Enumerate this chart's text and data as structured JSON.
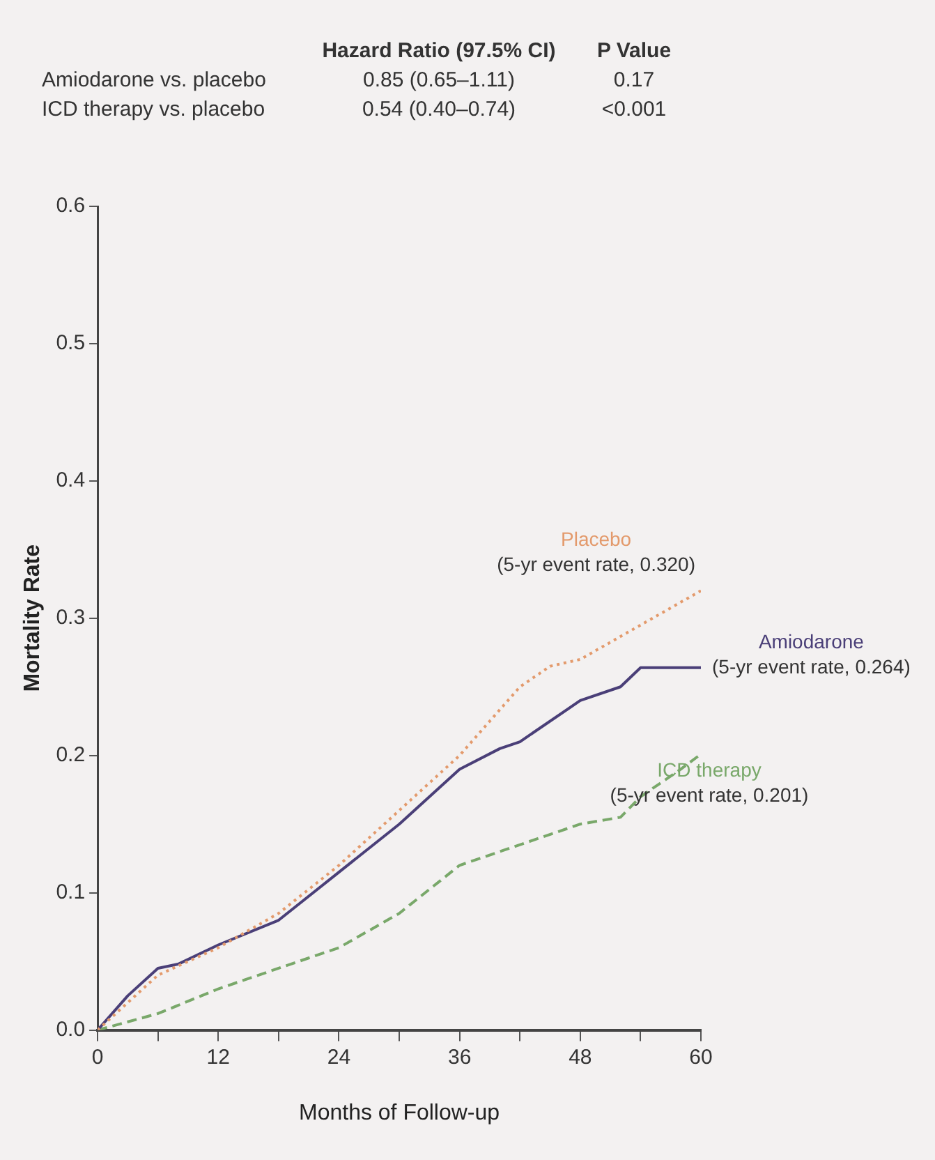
{
  "chart_data": {
    "type": "line",
    "xlabel": "Months of Follow-up",
    "ylabel": "Mortality Rate",
    "xlim": [
      0,
      60
    ],
    "xticks": [
      0,
      {
        "value": 6,
        "label": null
      },
      12,
      {
        "value": 18,
        "label": null
      },
      24,
      {
        "value": 30,
        "label": null
      },
      36,
      {
        "value": 42,
        "label": null
      },
      48,
      {
        "value": 54,
        "label": null
      },
      60
    ],
    "ylim": [
      0,
      0.6
    ],
    "yticks": [
      {
        "value": 0,
        "label": "0.0"
      },
      0.1,
      0.2,
      0.3,
      0.4,
      0.5,
      0.6
    ],
    "grid": false,
    "legend": false,
    "marker": "none",
    "series": [
      {
        "name": "Placebo",
        "color": "#e39a6c",
        "line_style": "dotted",
        "x": [
          0,
          3,
          6,
          9,
          12,
          18,
          24,
          30,
          36,
          42,
          45,
          48,
          54,
          60
        ],
        "values": [
          0,
          0.02,
          0.04,
          0.05,
          0.06,
          0.085,
          0.12,
          0.16,
          0.2,
          0.25,
          0.265,
          0.27,
          0.295,
          0.32
        ]
      },
      {
        "name": "Amiodarone",
        "color": "#4a3f78",
        "line_style": "solid",
        "x": [
          0,
          3,
          6,
          8,
          12,
          18,
          24,
          30,
          36,
          40,
          42,
          48,
          52,
          54,
          60
        ],
        "values": [
          0,
          0.025,
          0.045,
          0.048,
          0.062,
          0.08,
          0.115,
          0.15,
          0.19,
          0.205,
          0.21,
          0.24,
          0.25,
          0.264,
          0.264
        ]
      },
      {
        "name": "ICD therapy",
        "color": "#79a86a",
        "line_style": "dashed",
        "x": [
          0,
          6,
          12,
          18,
          24,
          30,
          36,
          40,
          44,
          48,
          52,
          54,
          58,
          60
        ],
        "values": [
          0,
          0.012,
          0.03,
          0.045,
          0.06,
          0.085,
          0.12,
          0.13,
          0.14,
          0.15,
          0.155,
          0.17,
          0.19,
          0.201
        ]
      }
    ],
    "annotations": [
      "Hazard Ratio (97.5% CI)",
      "P Value",
      "Amiodarone vs. placebo",
      "0.85 (0.65–1.11)",
      "0.17",
      "ICD therapy vs. placebo",
      "0.54 (0.40–0.74)",
      "<0.001",
      "(5-yr event rate, 0.320)",
      "(5-yr event rate, 0.264)",
      "(5-yr event rate, 0.201)"
    ]
  }
}
